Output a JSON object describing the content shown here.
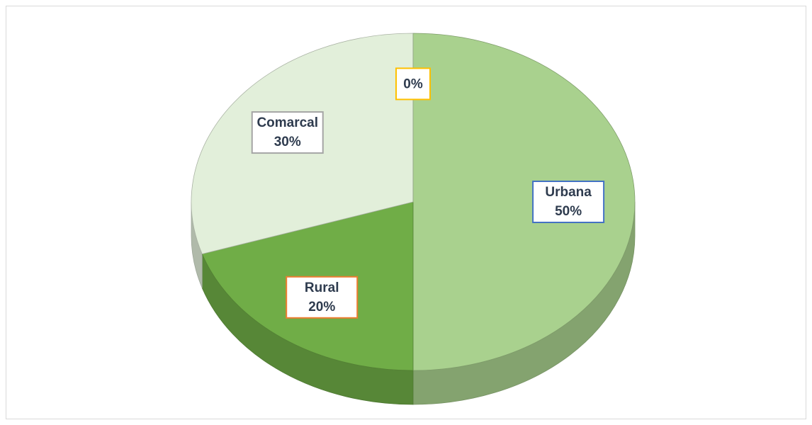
{
  "chart_data": {
    "type": "pie",
    "categories": [
      "Urbana",
      "Rural",
      "Comarcal",
      null
    ],
    "values": [
      50,
      20,
      30,
      0
    ],
    "value_labels": [
      "50%",
      "20%",
      "30%",
      "0%"
    ],
    "colors": [
      "#a9d18e",
      "#70ad47",
      "#e2efda",
      "#c5e0b4"
    ],
    "label_border_colors": [
      "#4472c4",
      "#ed7d31",
      "#a5a5a5",
      "#ffc000"
    ],
    "start_angle": 0,
    "direction": "clockwise",
    "3d": true
  }
}
